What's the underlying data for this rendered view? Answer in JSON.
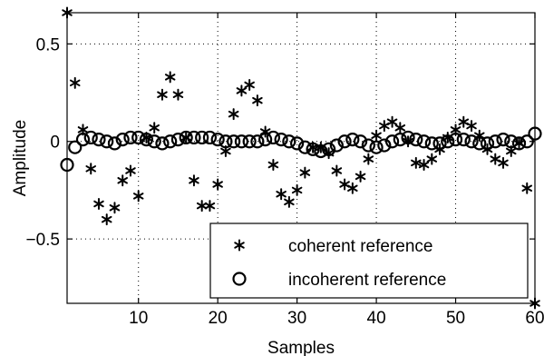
{
  "chart_data": {
    "type": "scatter",
    "xlabel": "Samples",
    "ylabel": "Amplitude",
    "xlim": [
      1,
      60
    ],
    "ylim": [
      -0.83,
      0.66
    ],
    "xticks": [
      10,
      20,
      30,
      40,
      50,
      60
    ],
    "yticks": [
      -0.5,
      0,
      0.5
    ],
    "ytick_labels": [
      "−0.5",
      "0",
      "0.5"
    ],
    "grid": true,
    "grid_style": "dotted",
    "legend_position": "bottom-right",
    "series": [
      {
        "name": "coherent reference",
        "marker": "asterisk",
        "color": "#000000",
        "x": [
          1,
          2,
          3,
          4,
          5,
          6,
          7,
          8,
          9,
          10,
          11,
          12,
          13,
          14,
          15,
          16,
          17,
          18,
          19,
          20,
          21,
          22,
          23,
          24,
          25,
          26,
          27,
          28,
          29,
          30,
          31,
          32,
          33,
          34,
          35,
          36,
          37,
          38,
          39,
          40,
          41,
          42,
          43,
          44,
          45,
          46,
          47,
          48,
          49,
          50,
          51,
          52,
          53,
          54,
          55,
          56,
          57,
          58,
          59,
          60
        ],
        "y": [
          0.66,
          0.3,
          0.06,
          -0.14,
          -0.32,
          -0.4,
          -0.34,
          -0.2,
          -0.15,
          -0.28,
          0.02,
          0.07,
          0.24,
          0.33,
          0.24,
          0.02,
          -0.2,
          -0.33,
          -0.33,
          -0.22,
          -0.05,
          0.14,
          0.26,
          0.29,
          0.21,
          0.05,
          -0.12,
          -0.27,
          -0.31,
          -0.25,
          -0.16,
          -0.03,
          -0.03,
          -0.06,
          -0.15,
          -0.22,
          -0.24,
          -0.18,
          -0.09,
          0.03,
          0.08,
          0.1,
          0.07,
          0.0,
          -0.11,
          -0.12,
          -0.09,
          -0.04,
          0.02,
          0.06,
          0.1,
          0.08,
          0.03,
          -0.04,
          -0.09,
          -0.11,
          -0.05,
          -0.01,
          -0.24,
          -0.83
        ]
      },
      {
        "name": "incoherent reference",
        "marker": "circle",
        "color": "#000000",
        "x": [
          1,
          2,
          3,
          4,
          5,
          6,
          7,
          8,
          9,
          10,
          11,
          12,
          13,
          14,
          15,
          16,
          17,
          18,
          19,
          20,
          21,
          22,
          23,
          24,
          25,
          26,
          27,
          28,
          29,
          30,
          31,
          32,
          33,
          34,
          35,
          36,
          37,
          38,
          39,
          40,
          41,
          42,
          43,
          44,
          45,
          46,
          47,
          48,
          49,
          50,
          51,
          52,
          53,
          54,
          55,
          56,
          57,
          58,
          59,
          60
        ],
        "y": [
          -0.12,
          -0.03,
          0.01,
          0.02,
          0.01,
          0.0,
          -0.01,
          0.01,
          0.02,
          0.02,
          0.01,
          0.0,
          -0.01,
          0.0,
          0.01,
          0.02,
          0.02,
          0.02,
          0.02,
          0.01,
          0.0,
          0.0,
          0.0,
          0.0,
          0.0,
          0.01,
          0.02,
          0.01,
          0.0,
          -0.01,
          -0.03,
          -0.04,
          -0.05,
          -0.04,
          -0.02,
          0.0,
          0.01,
          0.0,
          -0.02,
          -0.03,
          -0.02,
          0.0,
          0.01,
          0.02,
          0.01,
          0.0,
          -0.01,
          -0.01,
          0.0,
          0.01,
          0.01,
          0.0,
          -0.01,
          -0.01,
          0.0,
          0.01,
          0.0,
          -0.01,
          0.0,
          0.04
        ]
      }
    ]
  }
}
